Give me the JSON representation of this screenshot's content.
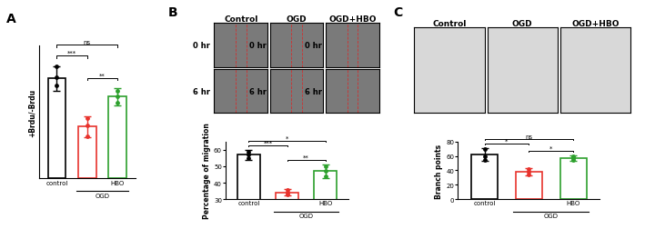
{
  "panel_letters": [
    "A",
    "B",
    "C"
  ],
  "image_grids": {
    "B": {
      "columns": [
        "Control",
        "OGD",
        "OGD+HBO"
      ],
      "rows": [
        "0 hr",
        "6 hr"
      ]
    },
    "C": {
      "columns": [
        "Control",
        "OGD",
        "OGD+HBO"
      ]
    }
  },
  "chart_data": [
    {
      "type": "bar",
      "panel": "A",
      "y_label": "+Brdu/-Brdu",
      "categories": [
        "control",
        null,
        "HBO"
      ],
      "x_group_label": "OGD",
      "values": [
        12,
        6.2,
        9.8
      ],
      "errors": [
        1.5,
        1.3,
        1.0
      ],
      "points": [
        [
          11.2,
          12.1,
          13.4
        ],
        [
          5.0,
          6.4,
          7.2
        ],
        [
          9.1,
          9.8,
          10.5
        ]
      ],
      "colors": [
        "#000000",
        "#e8322c",
        "#2ca02c"
      ],
      "ylim": [
        0,
        16
      ],
      "tick_labels": "x",
      "significance": [
        {
          "pair": [
            0,
            2
          ],
          "label": "ns"
        },
        {
          "pair": [
            0,
            1
          ],
          "label": "***"
        },
        {
          "pair": [
            1,
            2
          ],
          "label": "**"
        }
      ]
    },
    {
      "type": "bar",
      "panel": "B",
      "y_label": "Percentage of migration",
      "categories": [
        "control",
        null,
        "HBO"
      ],
      "x_group_label": "OGD",
      "values": [
        57,
        34,
        47
      ],
      "errors": [
        3,
        2,
        4
      ],
      "points": [
        [
          55,
          57,
          59
        ],
        [
          33,
          34,
          35.5
        ],
        [
          44,
          47,
          50
        ]
      ],
      "colors": [
        "#000000",
        "#e8322c",
        "#2ca02c"
      ],
      "ylim": [
        30,
        65
      ],
      "yticks": [
        30,
        40,
        50,
        60
      ],
      "significance": [
        {
          "pair": [
            0,
            2
          ],
          "label": "*"
        },
        {
          "pair": [
            0,
            1
          ],
          "label": "***"
        },
        {
          "pair": [
            1,
            2
          ],
          "label": "**"
        }
      ]
    },
    {
      "type": "bar",
      "panel": "C",
      "y_label": "Branch points",
      "categories": [
        "control",
        null,
        "HBO"
      ],
      "x_group_label": "OGD",
      "values": [
        62,
        38,
        57
      ],
      "errors": [
        9,
        5,
        4
      ],
      "points": [
        [
          54,
          60,
          70
        ],
        [
          34,
          38,
          42
        ],
        [
          54,
          57,
          60
        ]
      ],
      "colors": [
        "#000000",
        "#e8322c",
        "#2ca02c"
      ],
      "ylim": [
        0,
        80
      ],
      "yticks": [
        0,
        20,
        40,
        60,
        80
      ],
      "significance": [
        {
          "pair": [
            0,
            2
          ],
          "label": "ns"
        },
        {
          "pair": [
            0,
            1
          ],
          "label": "*"
        },
        {
          "pair": [
            1,
            2
          ],
          "label": "*"
        }
      ]
    }
  ]
}
